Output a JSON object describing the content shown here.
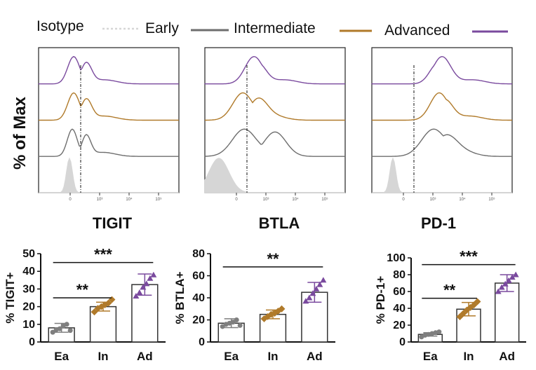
{
  "colors": {
    "isotype": "#d6d6d6",
    "early": "#6e6e6e",
    "intermediate": "#b07a2a",
    "advanced": "#7a4a9e",
    "bar_edge": "#333333",
    "dot_gray": "#7f7f7f"
  },
  "legend": [
    {
      "key": "isotype",
      "label": "Isotype"
    },
    {
      "key": "early",
      "label": "Early"
    },
    {
      "key": "intermediate",
      "label": "Intermediate"
    },
    {
      "key": "advanced",
      "label": "Advanced"
    }
  ],
  "histogram_ylabel": "% of Max",
  "chart_data": [
    {
      "type": "histogram_overlay",
      "marker": "TIGIT",
      "series": [
        "isotype",
        "early",
        "intermediate",
        "advanced"
      ],
      "axis_tick_labels": [
        "0",
        "10³",
        "10⁴",
        "10⁵"
      ],
      "gate_log_position": 0.55
    },
    {
      "type": "histogram_overlay",
      "marker": "BTLA",
      "series": [
        "isotype",
        "early",
        "intermediate",
        "advanced"
      ],
      "axis_tick_labels": [
        "0",
        "10³",
        "10⁴",
        "10⁵"
      ],
      "gate_log_position": 0.55
    },
    {
      "type": "histogram_overlay",
      "marker": "PD-1",
      "series": [
        "isotype",
        "early",
        "intermediate",
        "advanced"
      ],
      "axis_tick_labels": [
        "0",
        "10³",
        "10⁴",
        "10⁵"
      ],
      "gate_log_position": 0.55
    },
    {
      "type": "bar",
      "ylabel": "% TIGIT+",
      "ylim": [
        0,
        50
      ],
      "yticks": [
        0,
        10,
        20,
        30,
        40,
        50
      ],
      "categories": [
        "Ea",
        "In",
        "Ad"
      ],
      "values": [
        8,
        20,
        32.5
      ],
      "errors": [
        2.5,
        2.5,
        6
      ],
      "points": [
        [
          5.5,
          7,
          7.5,
          9,
          10,
          6.5
        ],
        [
          17,
          19,
          20,
          21,
          22,
          24
        ],
        [
          26,
          28,
          31,
          33,
          36,
          38
        ]
      ],
      "point_keys": [
        "early",
        "intermediate",
        "advanced"
      ],
      "significance": [
        {
          "from": 0,
          "to": 1,
          "label": "**",
          "y": 25
        },
        {
          "from": 0,
          "to": 2,
          "label": "***",
          "y": 45
        }
      ]
    },
    {
      "type": "bar",
      "ylabel": "% BTLA+",
      "ylim": [
        0,
        80
      ],
      "yticks": [
        0,
        20,
        40,
        60,
        80
      ],
      "categories": [
        "Ea",
        "In",
        "Ad"
      ],
      "values": [
        17,
        25,
        45
      ],
      "errors": [
        4,
        4,
        9
      ],
      "points": [
        [
          14,
          16,
          17,
          18,
          20,
          15
        ],
        [
          21,
          23,
          25,
          26,
          28,
          30
        ],
        [
          37,
          40,
          44,
          48,
          52,
          56
        ]
      ],
      "point_keys": [
        "early",
        "intermediate",
        "advanced"
      ],
      "significance": [
        {
          "from": 0,
          "to": 2,
          "label": "**",
          "y": 68
        }
      ]
    },
    {
      "type": "bar",
      "ylabel": "% PD-1+",
      "ylim": [
        0,
        100
      ],
      "yticks": [
        0,
        20,
        40,
        60,
        80,
        100
      ],
      "categories": [
        "Ea",
        "In",
        "Ad"
      ],
      "values": [
        9,
        39,
        70
      ],
      "errors": [
        2,
        8,
        10
      ],
      "points": [
        [
          6,
          8,
          9,
          10,
          11,
          12
        ],
        [
          30,
          34,
          38,
          41,
          44,
          48
        ],
        [
          60,
          65,
          69,
          73,
          77,
          80
        ]
      ],
      "point_keys": [
        "early",
        "intermediate",
        "advanced"
      ],
      "significance": [
        {
          "from": 0,
          "to": 1,
          "label": "**",
          "y": 52
        },
        {
          "from": 0,
          "to": 2,
          "label": "***",
          "y": 92
        }
      ]
    }
  ]
}
